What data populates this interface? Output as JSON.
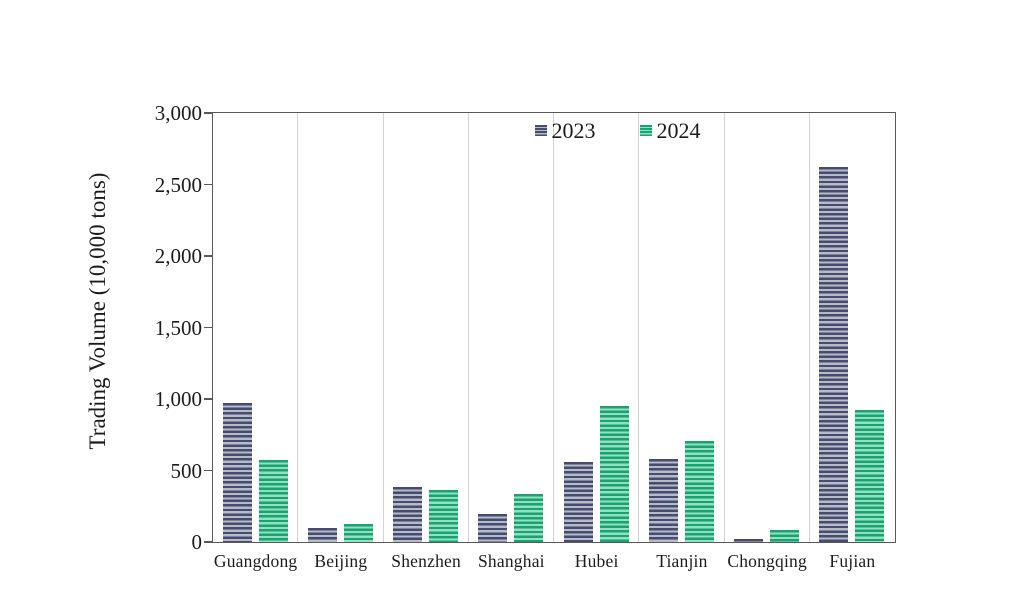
{
  "chart_data": {
    "type": "bar",
    "title": "",
    "xlabel": "",
    "ylabel": "Trading Volume (10,000 tons)",
    "ylim": [
      0,
      3000
    ],
    "ytick_step": 500,
    "ytick_labels": [
      "0",
      "500",
      "1,000",
      "1,500",
      "2,000",
      "2,500",
      "3,000"
    ],
    "categories": [
      "Guangdong",
      "Beijing",
      "Shenzhen",
      "Shanghai",
      "Hubei",
      "Tianjin",
      "Chongqing",
      "Fujian"
    ],
    "series": [
      {
        "name": "2023",
        "values": [
          970,
          95,
          380,
          190,
          555,
          575,
          20,
          2620
        ],
        "stripe_dark": "#454c6e",
        "stripe_light": "#b6bac9"
      },
      {
        "name": "2024",
        "values": [
          570,
          125,
          360,
          330,
          950,
          705,
          80,
          920
        ],
        "stripe_dark": "#18a370",
        "stripe_light": "#93dfc2"
      }
    ],
    "grid": "vertical category separators",
    "legend_position": "inside top, right of center",
    "axis_color": "#595959",
    "gridline_color": "#d4d4d4",
    "text_color": "#1c1c1c"
  }
}
